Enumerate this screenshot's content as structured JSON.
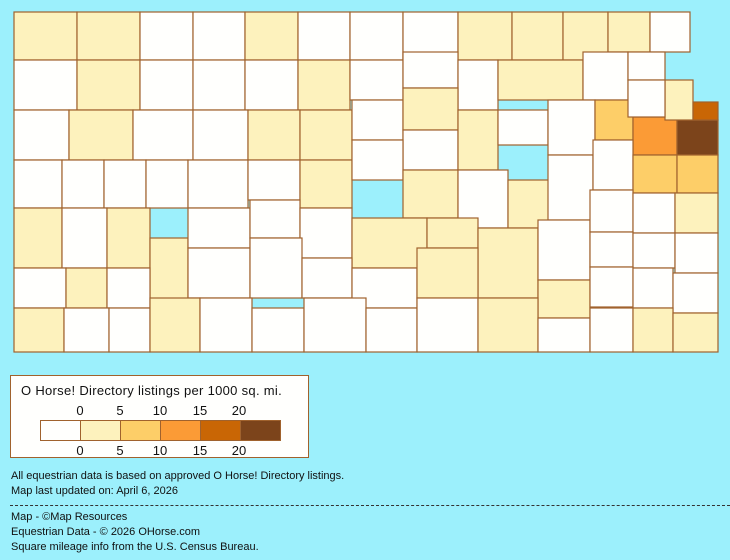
{
  "colors": {
    "background": "#9cf0fc",
    "border": "#a0622d",
    "levels": [
      "#fffffd",
      "#fdf2bd",
      "#fdce68",
      "#fb9b36",
      "#c96605",
      "#7c441b"
    ]
  },
  "map": {
    "county_levels": [
      1,
      1,
      0,
      0,
      1,
      0,
      0,
      0,
      1,
      1,
      1,
      1,
      0,
      0,
      1,
      0,
      0,
      0,
      1,
      0,
      0,
      0,
      1,
      0,
      0,
      0,
      1,
      0,
      0,
      1,
      1,
      0,
      1,
      0,
      1,
      0,
      0,
      2,
      3,
      5,
      1,
      4,
      0,
      0,
      0,
      0,
      0,
      0,
      0,
      1,
      0,
      1,
      0,
      1,
      0,
      0,
      2,
      2,
      1,
      0,
      1,
      1,
      0,
      0,
      0,
      1,
      1,
      1,
      0,
      0,
      0,
      1,
      0,
      0,
      0,
      0,
      1,
      0,
      0,
      0,
      0,
      0,
      1,
      1,
      0,
      0,
      0,
      1,
      0,
      0,
      1,
      0,
      0,
      0,
      0,
      0,
      1,
      0,
      0,
      1,
      1,
      0
    ]
  },
  "legend": {
    "title": "O Horse! Directory listings per 1000 sq. mi.",
    "top_ticks": [
      "0",
      "5",
      "10",
      "15",
      "20"
    ],
    "bottom_ticks": [
      "0",
      "5",
      "10",
      "15",
      "20"
    ]
  },
  "footer": {
    "line1": "All equestrian data is based on approved O Horse! Directory listings.",
    "line2": "Map last updated on: April 6, 2026",
    "credit1": "Map - ©Map Resources",
    "credit2": "Equestrian Data - © 2026 OHorse.com",
    "credit3": "Square mileage info from the U.S. Census Bureau."
  }
}
